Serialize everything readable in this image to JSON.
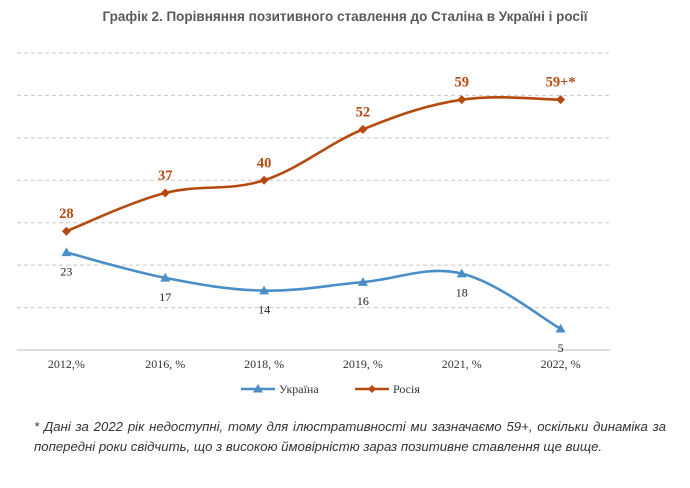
{
  "title": "Графік 2. Порівняння позитивного ставлення до Сталіна в Україні і росії",
  "footnote": "* Дані за 2022 рік недоступні, тому для ілюстративності ми зазначаємо 59+, оскільки динаміка за попередні роки свідчить, що з високою ймовірністю зараз позитивне ставлення ще вище.",
  "chart_data": {
    "type": "line",
    "categories": [
      "2012,%",
      "2016, %",
      "2018, %",
      "2019, %",
      "2021, %",
      "2022, %"
    ],
    "series": [
      {
        "name": "Україна",
        "values": [
          23,
          17,
          14,
          16,
          18,
          5
        ],
        "labels": [
          "23",
          "17",
          "14",
          "16",
          "18",
          "5"
        ],
        "color": "#4A8EC8",
        "marker": "triangle"
      },
      {
        "name": "Росія",
        "values": [
          28,
          37,
          40,
          52,
          59,
          59
        ],
        "labels": [
          "28",
          "37",
          "40",
          "52",
          "59",
          "59+*"
        ],
        "color": "#B54A10",
        "marker": "diamond"
      }
    ],
    "ylim": [
      0,
      70
    ],
    "grid": true,
    "legend": "bottom-center"
  }
}
